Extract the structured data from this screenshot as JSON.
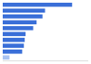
{
  "chart_data": {
    "type": "bar",
    "orientation": "horizontal",
    "categories": [
      null,
      null,
      null,
      null,
      null,
      null,
      null,
      null,
      null,
      null
    ],
    "values": [
      82,
      50,
      47,
      40,
      36,
      27,
      26,
      25,
      23,
      8
    ],
    "colors": [
      "#3a6fd8",
      "#3a6fd8",
      "#3a6fd8",
      "#3a6fd8",
      "#3a6fd8",
      "#3a6fd8",
      "#3a6fd8",
      "#3a6fd8",
      "#3a6fd8",
      "#a9c3f2"
    ],
    "xlim": [
      0,
      100
    ],
    "tick_labels": false,
    "grid": false
  }
}
